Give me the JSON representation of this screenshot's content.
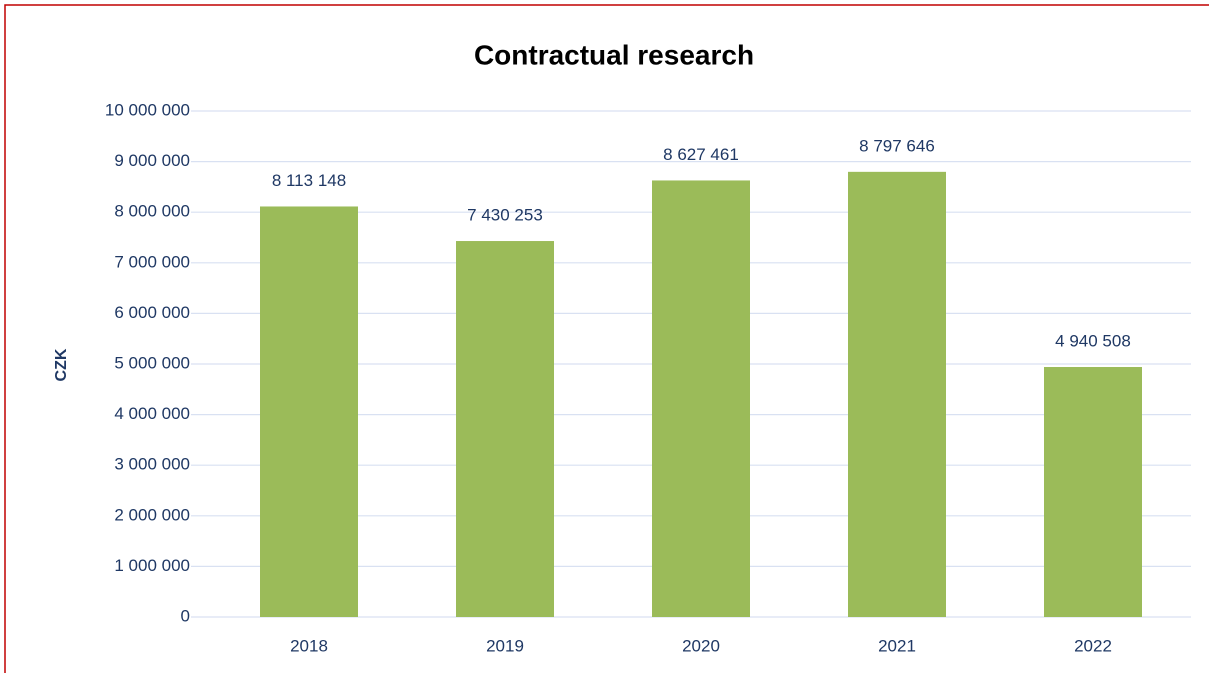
{
  "chart_data": {
    "type": "bar",
    "title": "Contractual research",
    "y_label": "CZK",
    "categories": [
      "2018",
      "2019",
      "2020",
      "2021",
      "2022"
    ],
    "values": [
      8113148,
      7430253,
      8627461,
      8797646,
      4940508
    ],
    "value_labels": [
      "8 113 148",
      "7 430 253",
      "8 627 461",
      "8 797 646",
      "4 940 508"
    ],
    "color": "#9bbb59",
    "ylim": [
      0,
      10000000
    ],
    "yticks": [
      0,
      {
        "value": 1000000,
        "label": "1 000 000"
      },
      {
        "value": 2000000,
        "label": "2 000 000"
      },
      {
        "value": 3000000,
        "label": "3 000 000"
      },
      {
        "value": 4000000,
        "label": "4 000 000"
      },
      {
        "value": 5000000,
        "label": "5 000 000"
      },
      {
        "value": 6000000,
        "label": "6 000 000"
      },
      {
        "value": 7000000,
        "label": "7 000 000"
      },
      {
        "value": 8000000,
        "label": "8 000 000"
      },
      {
        "value": 9000000,
        "label": "9 000 000"
      },
      {
        "value": 10000000,
        "label": "10 000 000"
      }
    ],
    "grid": true
  }
}
